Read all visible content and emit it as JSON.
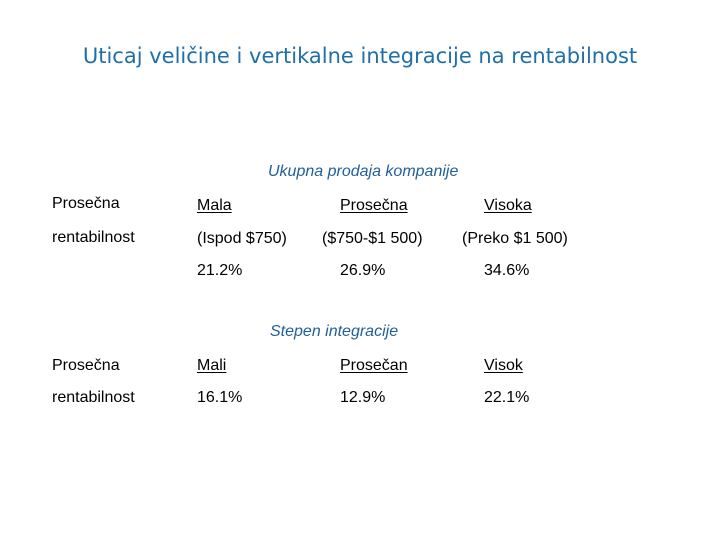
{
  "slide": {
    "title": "Uticaj veličine i vertikalne integracije na rentabilnost"
  },
  "section1": {
    "heading": "Ukupna prodaja kompanije",
    "row_label_1": "Prosečna",
    "row_label_2": "rentabilnost",
    "columns": [
      {
        "name": "Mala",
        "range": "(Ispod $750)",
        "value": "21.2%"
      },
      {
        "name": "Prosečna",
        "range": "($750-$1 500)",
        "value": "26.9%"
      },
      {
        "name": "Visoka",
        "range": "(Preko $1 500)",
        "value": "34.6%"
      }
    ]
  },
  "section2": {
    "heading": "Stepen integracije",
    "row_label_1": "Prosečna",
    "row_label_2": "rentabilnost",
    "columns": [
      {
        "name": "Mali",
        "value": "16.1%"
      },
      {
        "name": "Prosečan",
        "value": "12.9%"
      },
      {
        "name": "Visok",
        "value": "22.1%"
      }
    ]
  },
  "colors": {
    "title": "#1f6fa8",
    "heading": "#1f5f9a",
    "text": "#000000"
  }
}
